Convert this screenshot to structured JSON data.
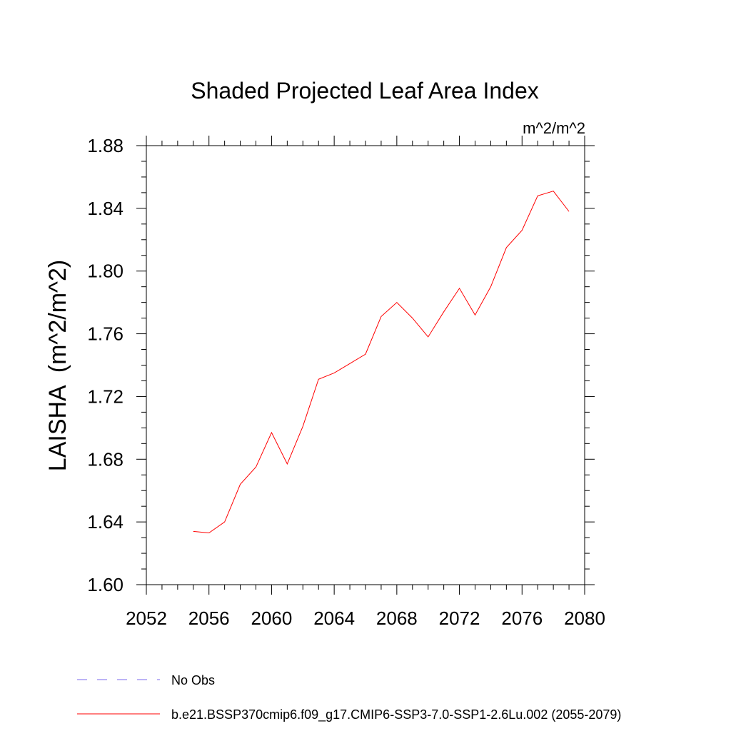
{
  "chart_data": {
    "type": "line",
    "title": "Shaded Projected Leaf Area Index",
    "units": "m^2/m^2",
    "ylabel": "LAISHA  (m^2/m^2)",
    "xlabel": "",
    "xlim": [
      2052,
      2080
    ],
    "ylim": [
      1.6,
      1.88
    ],
    "x_ticks": [
      "2052",
      "2056",
      "2060",
      "2064",
      "2068",
      "2072",
      "2076",
      "2080"
    ],
    "y_ticks": [
      "1.60",
      "1.64",
      "1.68",
      "1.72",
      "1.76",
      "1.80",
      "1.84",
      "1.88"
    ],
    "grid": false,
    "legend_position": "bottom",
    "series": [
      {
        "name": "b.e21.BSSP370cmip6.f09_g17.CMIP6-SSP3-7.0-SSP1-2.6Lu.002 (2055-2079)",
        "color": "#ff0000",
        "x": [
          2055,
          2056,
          2057,
          2058,
          2059,
          2060,
          2061,
          2062,
          2063,
          2064,
          2065,
          2066,
          2067,
          2068,
          2069,
          2070,
          2071,
          2072,
          2073,
          2074,
          2075,
          2076,
          2077,
          2078,
          2079
        ],
        "y": [
          1.634,
          1.633,
          1.64,
          1.664,
          1.675,
          1.697,
          1.677,
          1.701,
          1.731,
          1.735,
          1.741,
          1.747,
          1.771,
          1.78,
          1.77,
          1.758,
          1.774,
          1.789,
          1.772,
          1.79,
          1.815,
          1.826,
          1.848,
          1.851,
          1.838
        ]
      }
    ],
    "legend": [
      {
        "label": "No Obs",
        "color": "#7b68ee",
        "style": "dashed"
      },
      {
        "label": "b.e21.BSSP370cmip6.f09_g17.CMIP6-SSP3-7.0-SSP1-2.6Lu.002 (2055-2079)",
        "color": "#ff0000",
        "style": "solid"
      }
    ]
  }
}
